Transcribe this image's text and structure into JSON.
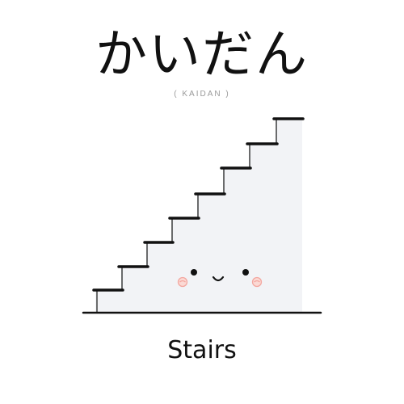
{
  "card": {
    "japanese_word": "かいだん",
    "romaji": "( KAIDAN )",
    "english_word": "Stairs"
  },
  "illustration": {
    "subject": "stairs",
    "expression": "smiling face",
    "step_count": 8,
    "colors": {
      "outline": "#111111",
      "fill": "#f2f3f6",
      "blush": "#f3a7a0",
      "text": "#111111",
      "subtext": "#9a9a9a"
    }
  }
}
